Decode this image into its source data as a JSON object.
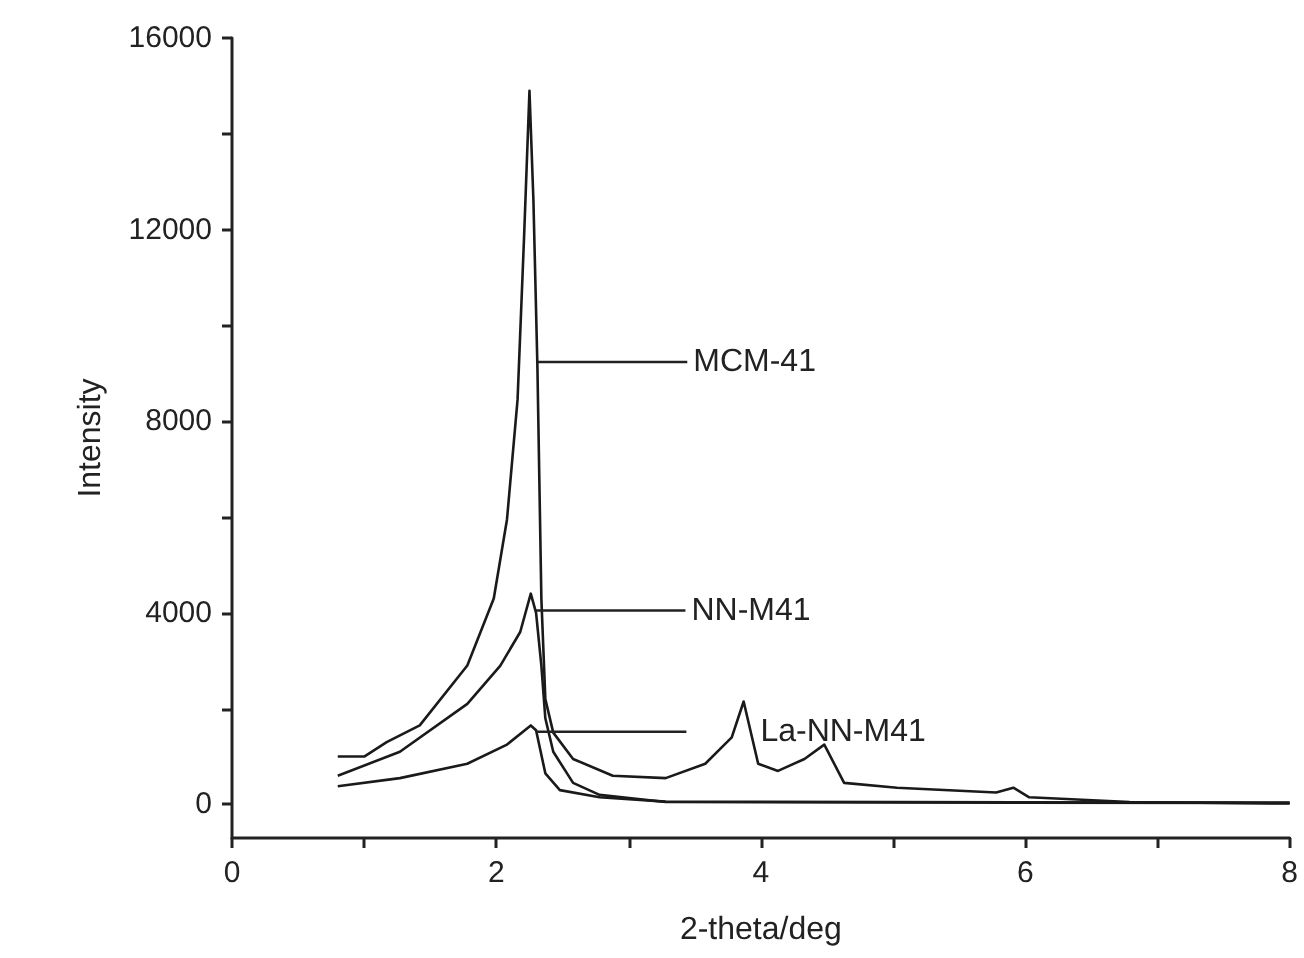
{
  "chart_data": {
    "type": "line",
    "xlabel": "2-theta/deg",
    "ylabel": "Intensity",
    "xlim": [
      0,
      8
    ],
    "ylim": [
      -700,
      16000
    ],
    "xticks": [
      0,
      {
        "value": 1,
        "label": null
      },
      2,
      {
        "value": 3,
        "label": null
      },
      4,
      {
        "value": 5,
        "label": null
      },
      6,
      {
        "value": 7,
        "label": null
      },
      8
    ],
    "yticks": [
      0,
      {
        "value": 2000,
        "label": null
      },
      4000,
      {
        "value": 6000,
        "label": null
      },
      8000,
      {
        "value": 10000,
        "label": null
      },
      12000,
      {
        "value": 14000,
        "label": null
      },
      16000
    ],
    "grid": false,
    "legend": "right",
    "marker": "none",
    "line_style": "solid",
    "series": [
      {
        "name": "MCM-41",
        "color": "#1a1a1a",
        "x": [
          0.8,
          1.0,
          1.17,
          1.42,
          1.78,
          1.98,
          2.08,
          2.16,
          2.21,
          2.25,
          2.28,
          2.31,
          2.34,
          2.37,
          2.43,
          2.58,
          2.88,
          3.28,
          3.58,
          3.78,
          3.87,
          3.98,
          4.13,
          4.33,
          4.48,
          4.63,
          5.03,
          5.78,
          5.91,
          6.03,
          6.79,
          8.0
        ],
        "values": [
          1000,
          1000,
          1300,
          1650,
          2900,
          4300,
          5950,
          8450,
          11900,
          14900,
          12600,
          9150,
          4300,
          2200,
          1500,
          950,
          600,
          550,
          850,
          1400,
          2150,
          850,
          700,
          950,
          1250,
          450,
          350,
          250,
          350,
          150,
          50,
          20
        ]
      },
      {
        "name": "NN-M41",
        "color": "#1a1a1a",
        "x": [
          0.8,
          1.27,
          1.78,
          2.03,
          2.18,
          2.26,
          2.3,
          2.34,
          2.37,
          2.43,
          2.58,
          2.78,
          3.28,
          5.0,
          8.0
        ],
        "values": [
          600,
          1100,
          2100,
          2900,
          3600,
          4400,
          4000,
          2900,
          1800,
          1100,
          450,
          200,
          50,
          40,
          30
        ]
      },
      {
        "name": "La-NN-M41",
        "color": "#1a1a1a",
        "x": [
          0.8,
          1.27,
          1.78,
          2.08,
          2.26,
          2.3,
          2.37,
          2.48,
          2.78,
          3.28,
          5.0,
          8.0
        ],
        "values": [
          380,
          550,
          850,
          1250,
          1650,
          1550,
          650,
          300,
          150,
          60,
          50,
          40
        ]
      }
    ]
  }
}
